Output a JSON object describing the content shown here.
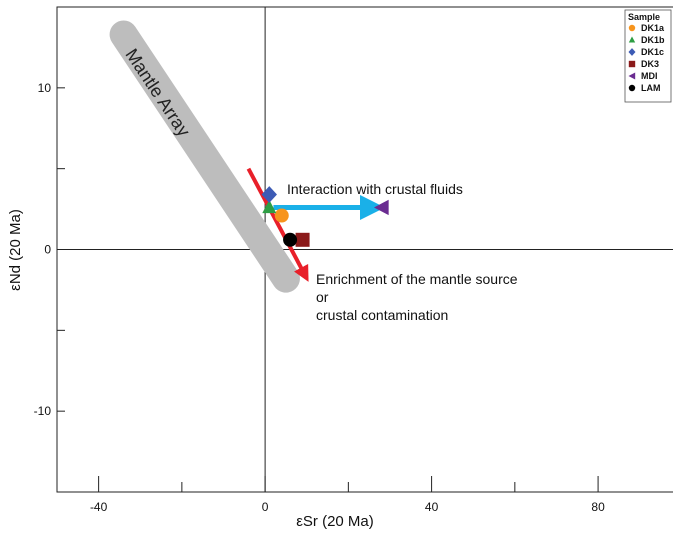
{
  "chart_data": {
    "type": "scatter",
    "xlabel": "εSr (20 Ma)",
    "ylabel": "εNd (20 Ma)",
    "xlim": [
      -50,
      98
    ],
    "ylim": [
      -15,
      15
    ],
    "x_ticks": [
      -40,
      0,
      40,
      80
    ],
    "y_ticks": [
      -10,
      0,
      10
    ],
    "grid": false,
    "legend": {
      "title": "Sample",
      "placement": "top-right",
      "entries": [
        {
          "name": "DK1a",
          "color": "#f7941d",
          "marker": "circle"
        },
        {
          "name": "DK1b",
          "color": "#2e9e44",
          "marker": "triangle-up"
        },
        {
          "name": "DK1c",
          "color": "#3d5bb5",
          "marker": "diamond"
        },
        {
          "name": "DK3",
          "color": "#8b1a1a",
          "marker": "square"
        },
        {
          "name": "MDI",
          "color": "#6a2c91",
          "marker": "triangle-left"
        },
        {
          "name": "LAM",
          "color": "#000000",
          "marker": "circle"
        }
      ]
    },
    "series": [
      {
        "name": "DK1a",
        "points": [
          [
            4,
            2.1
          ]
        ]
      },
      {
        "name": "DK1b",
        "points": [
          [
            1,
            2.6
          ]
        ]
      },
      {
        "name": "DK1c",
        "points": [
          [
            1,
            3.4
          ]
        ]
      },
      {
        "name": "DK3",
        "points": [
          [
            9,
            0.6
          ]
        ]
      },
      {
        "name": "MDI",
        "points": [
          [
            28,
            2.6
          ]
        ]
      },
      {
        "name": "LAM",
        "points": [
          [
            6,
            0.6
          ]
        ]
      }
    ],
    "mantle_array": {
      "label": "Mantle Array",
      "from": [
        -34,
        13.3
      ],
      "to": [
        5,
        -1.8
      ],
      "color": "#bdbdbd"
    },
    "arrows": [
      {
        "color": "#1ab0e8",
        "from": [
          2,
          2.6
        ],
        "to": [
          24,
          2.6
        ]
      },
      {
        "color": "#e8202a",
        "from": [
          -4,
          5
        ],
        "to": [
          9,
          -1.3
        ]
      }
    ],
    "annotations": [
      "Interaction with crustal fluids",
      "Enrichment of the mantle source",
      "or",
      "crustal contamination"
    ]
  }
}
